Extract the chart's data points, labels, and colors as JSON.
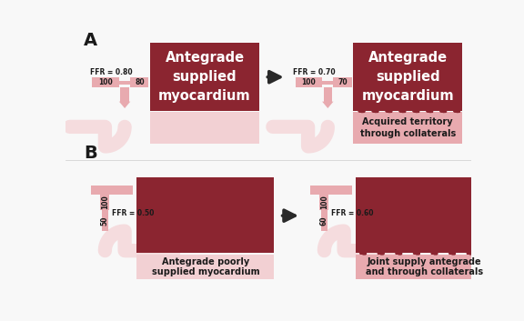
{
  "bg_color": "#f8f8f8",
  "dark_red": "#8B2530",
  "light_pink": "#E8AAAF",
  "lighter_pink": "#F2D0D3",
  "very_light_pink": "#F5DCDE",
  "arrow_color": "#2a2a2a",
  "text_white": "#FFFFFF",
  "text_dark": "#1a1a1a",
  "panel_A_label": "A",
  "panel_B_label": "B",
  "panel_A1_title": "Antegrade\nsupplied\nmyocardium",
  "panel_A2_title": "Antegrade\nsupplied\nmyocardium",
  "panel_A2_sub": "Acquired territory\nthrough collaterals",
  "panel_B1_title": "Antegrade poorly\nsupplied myocardium",
  "panel_B2_title": "Joint supply antegrade\nand through collaterals"
}
